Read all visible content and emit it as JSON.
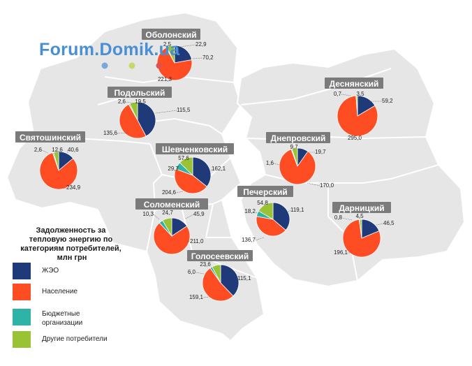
{
  "legend": {
    "title_lines": [
      "Задолженность за",
      "тепловую энергию по",
      "категориям потребителей,",
      "млн грн"
    ],
    "items": [
      {
        "name": "zheo",
        "label_lines": [
          "ЖЭО"
        ],
        "color": "#1f3a78"
      },
      {
        "name": "population",
        "label_lines": [
          "Население"
        ],
        "color": "#ff4d23"
      },
      {
        "name": "budget",
        "label_lines": [
          "Бюджетные",
          "организации"
        ],
        "color": "#2fb3a6"
      },
      {
        "name": "other",
        "label_lines": [
          "Другие потребители"
        ],
        "color": "#99c234"
      }
    ]
  },
  "watermark": {
    "text": "Forum.Domik.ua",
    "color": "#4a8fd4",
    "dot_colors": [
      "#7aa8d8",
      "#c8d66a",
      "#e05050"
    ]
  },
  "districts": [
    {
      "id": "obolonsky",
      "name": "Оболонский",
      "values": [
        70.2,
        221.3,
        2.5,
        22.9
      ],
      "labels": [
        "70,2",
        "221,3",
        "2,5",
        "22,9"
      ]
    },
    {
      "id": "podolsky",
      "name": "Подольский",
      "values": [
        115.5,
        135.6,
        2.6,
        19.5
      ],
      "labels": [
        "115,5",
        "135,6",
        "2,6",
        "19,5"
      ]
    },
    {
      "id": "svyatoshinsky",
      "name": "Святошинский",
      "values": [
        40.6,
        234.9,
        2.6,
        12.6
      ],
      "labels": [
        "40,6",
        "234,9",
        "2,6",
        "12,6"
      ]
    },
    {
      "id": "shevchenkovsky",
      "name": "Шевченковский",
      "values": [
        162.1,
        204.6,
        29.7,
        57.6
      ],
      "labels": [
        "162,1",
        "204,6",
        "29,7",
        "57,6"
      ]
    },
    {
      "id": "solomensky",
      "name": "Соломенский",
      "values": [
        45.9,
        211.0,
        10.3,
        24.7
      ],
      "labels": [
        "45,9",
        "211,0",
        "10,3",
        "24,7"
      ]
    },
    {
      "id": "golosievsky",
      "name": "Голосеевский",
      "values": [
        115.1,
        159.1,
        6.0,
        23.6
      ],
      "labels": [
        "115,1",
        "159,1",
        "6,0",
        "23,6"
      ]
    },
    {
      "id": "pechersky",
      "name": "Печерский",
      "values": [
        119.1,
        136.7,
        18.2,
        54.8
      ],
      "labels": [
        "119,1",
        "136,7",
        "18,2",
        "54,8"
      ]
    },
    {
      "id": "dneprovsky",
      "name": "Днепровский",
      "values": [
        19.7,
        170.0,
        1.6,
        9.7
      ],
      "labels": [
        "19,7",
        "170,0",
        "1,6",
        "9,7"
      ]
    },
    {
      "id": "desnyansky",
      "name": "Деснянский",
      "values": [
        59.2,
        295.0,
        0.7,
        3.5
      ],
      "labels": [
        "59,2",
        "295,0",
        "0,7",
        "3,5"
      ]
    },
    {
      "id": "darnitsky",
      "name": "Дарницкий",
      "values": [
        46.5,
        196.1,
        0.8,
        4.5
      ],
      "labels": [
        "46,5",
        "196,1",
        "0,8",
        "4,5"
      ]
    }
  ]
}
